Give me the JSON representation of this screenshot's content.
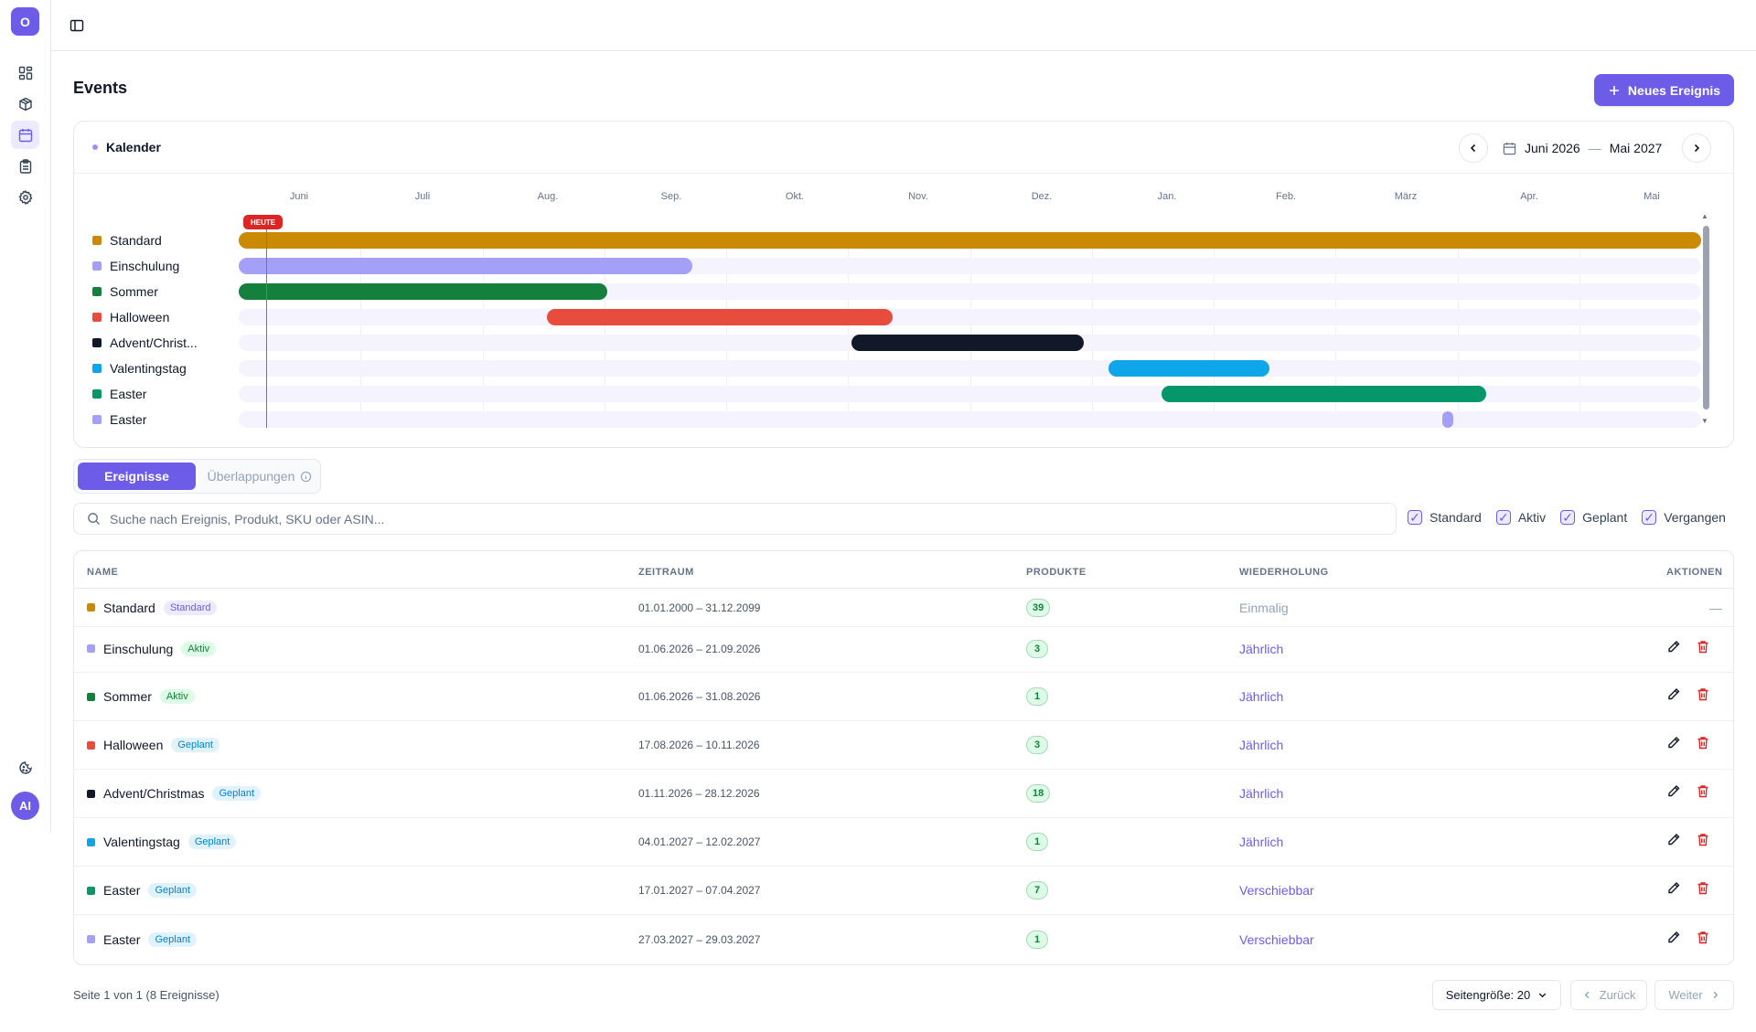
{
  "sidebar": {
    "logo_letter": "O",
    "avatar_initials": "AI",
    "items": [
      {
        "icon": "dashboard-icon"
      },
      {
        "icon": "box-icon"
      },
      {
        "icon": "calendar-icon",
        "active": true
      },
      {
        "icon": "clipboard-icon"
      },
      {
        "icon": "settings-icon"
      }
    ],
    "bottom_icon": "cookie-icon"
  },
  "header": {
    "title": "Events",
    "new_button_label": "Neues Ereignis"
  },
  "calendar": {
    "title": "Kalender",
    "range_start": "Juni 2026",
    "range_separator": "—",
    "range_end": "Mai 2027",
    "today_label": "HEUTE",
    "months": [
      "Juni",
      "Juli",
      "Aug.",
      "Sep.",
      "Okt.",
      "Nov.",
      "Dez.",
      "Jan.",
      "Feb.",
      "März",
      "Apr.",
      "Mai"
    ],
    "rows": [
      {
        "label": "Standard",
        "color": "#ca8a04",
        "start": 0.0,
        "end": 1.0
      },
      {
        "label": "Einschulung",
        "color": "#a5a0f7",
        "start": 0.0,
        "end": 0.31
      },
      {
        "label": "Sommer",
        "color": "#15803d",
        "start": 0.0,
        "end": 0.252
      },
      {
        "label": "Halloween",
        "color": "#e74c3c",
        "start": 0.211,
        "end": 0.447
      },
      {
        "label": "Advent/Christ...",
        "color": "#111827",
        "start": 0.419,
        "end": 0.578
      },
      {
        "label": "Valentingstag",
        "color": "#0ea5e9",
        "start": 0.595,
        "end": 0.705
      },
      {
        "label": "Easter",
        "color": "#059669",
        "start": 0.631,
        "end": 0.853
      },
      {
        "label": "Easter",
        "color": "#a5a0f7",
        "start": 0.823,
        "end": 0.829
      }
    ]
  },
  "tabs": {
    "active": "Ereignisse",
    "inactive": "Überlappungen"
  },
  "search": {
    "placeholder": "Suche nach Ereignis, Produkt, SKU oder ASIN..."
  },
  "filters": [
    "Standard",
    "Aktiv",
    "Geplant",
    "Vergangen"
  ],
  "table": {
    "headers": {
      "name": "NAME",
      "period": "ZEITRAUM",
      "products": "PRODUKTE",
      "repeat": "WIEDERHOLUNG",
      "actions": "AKTIONEN"
    },
    "rows": [
      {
        "name": "Standard",
        "color": "#ca8a04",
        "status": "Standard",
        "period": "01.01.2000 – 31.12.2099",
        "products": "39",
        "repeat": "Einmalig",
        "actions": "—"
      },
      {
        "name": "Einschulung",
        "color": "#a5a0f7",
        "status": "Aktiv",
        "period": "01.06.2026 – 21.09.2026",
        "products": "3",
        "repeat": "Jährlich"
      },
      {
        "name": "Sommer",
        "color": "#15803d",
        "status": "Aktiv",
        "period": "01.06.2026 – 31.08.2026",
        "products": "1",
        "repeat": "Jährlich"
      },
      {
        "name": "Halloween",
        "color": "#e74c3c",
        "status": "Geplant",
        "period": "17.08.2026 – 10.11.2026",
        "products": "3",
        "repeat": "Jährlich"
      },
      {
        "name": "Advent/Christmas",
        "color": "#111827",
        "status": "Geplant",
        "period": "01.11.2026 – 28.12.2026",
        "products": "18",
        "repeat": "Jährlich"
      },
      {
        "name": "Valentingstag",
        "color": "#0ea5e9",
        "status": "Geplant",
        "period": "04.01.2027 – 12.02.2027",
        "products": "1",
        "repeat": "Jährlich"
      },
      {
        "name": "Easter",
        "color": "#059669",
        "status": "Geplant",
        "period": "17.01.2027 – 07.04.2027",
        "products": "7",
        "repeat": "Verschiebbar"
      },
      {
        "name": "Easter",
        "color": "#a5a0f7",
        "status": "Geplant",
        "period": "27.03.2027 – 29.03.2027",
        "products": "1",
        "repeat": "Verschiebbar"
      }
    ]
  },
  "footer": {
    "page_info": "Seite 1 von 1 (8 Ereignisse)",
    "page_size": "Seitengröße: 20",
    "prev": "Zurück",
    "next": "Weiter"
  }
}
